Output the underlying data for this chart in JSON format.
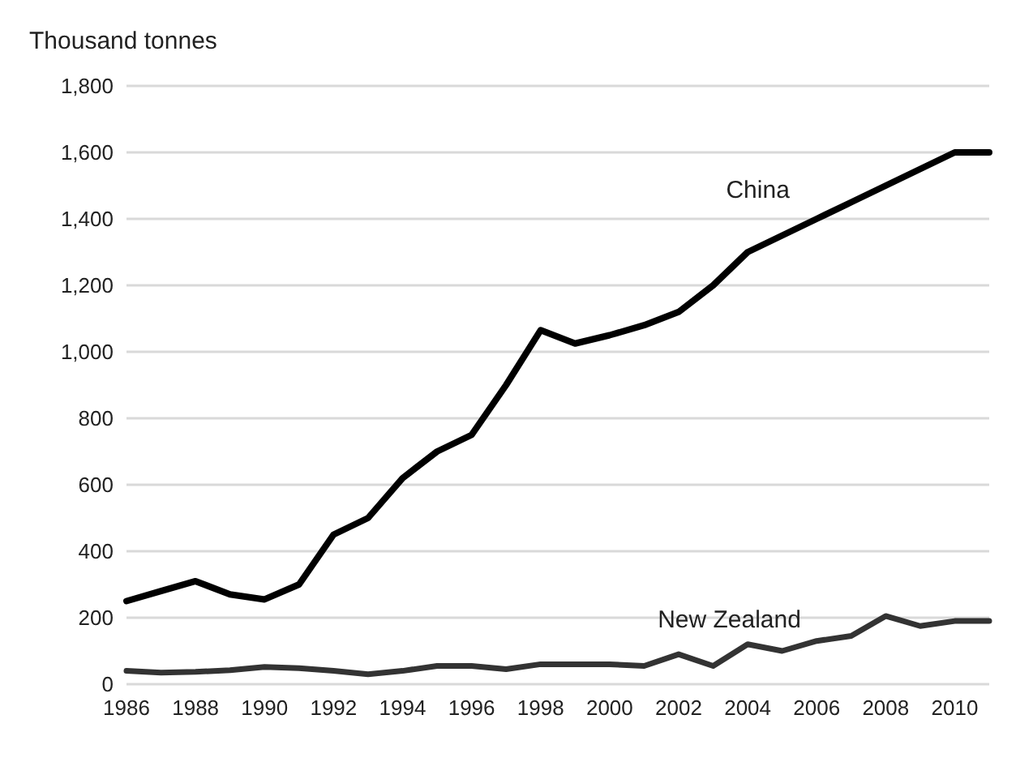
{
  "chart_data": {
    "type": "line",
    "ylabel": "Thousand tonnes",
    "categories": [
      "1986",
      null,
      "1988",
      null,
      "1990",
      null,
      "1992",
      null,
      "1994",
      null,
      "1996",
      null,
      "1998",
      null,
      "2000",
      null,
      "2002",
      null,
      "2004",
      null,
      "2006",
      null,
      "2008",
      null,
      "2010",
      null
    ],
    "series": [
      {
        "name": "China",
        "color": "#000000",
        "values": [
          250,
          280,
          310,
          270,
          255,
          300,
          450,
          500,
          620,
          700,
          750,
          900,
          1065,
          1025,
          1050,
          1080,
          1120,
          1200,
          1300,
          1350,
          1400,
          1450,
          1500,
          1550,
          1600,
          1600
        ]
      },
      {
        "name": "New Zealand",
        "color": "#333333",
        "values": [
          40,
          35,
          37,
          42,
          52,
          48,
          40,
          30,
          40,
          55,
          55,
          45,
          60,
          60,
          60,
          55,
          90,
          55,
          120,
          100,
          130,
          145,
          205,
          175,
          190,
          190
        ]
      }
    ],
    "ylim": [
      0,
      1800
    ],
    "yticks": [
      0,
      200,
      400,
      600,
      800,
      {
        "value": 1000,
        "label": "1,000"
      },
      {
        "value": 1200,
        "label": "1,200"
      },
      {
        "value": 1400,
        "label": "1,400"
      },
      {
        "value": 1600,
        "label": "1,600"
      },
      {
        "value": 1800,
        "label": "1,800"
      }
    ],
    "grid": "y",
    "legend": false,
    "marker": "none",
    "line_style": "solid"
  }
}
